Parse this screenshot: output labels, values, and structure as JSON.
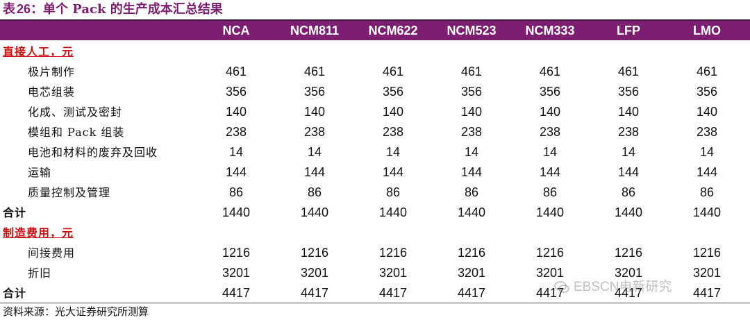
{
  "title": {
    "prefix": "表",
    "number": "26",
    "text": "单个 Pack 的生产成本汇总结果"
  },
  "columns": [
    "NCA",
    "NCM811",
    "NCM622",
    "NCM523",
    "NCM333",
    "LFP",
    "LMO"
  ],
  "rows": [
    {
      "type": "section",
      "label": "直接人工，元",
      "values": []
    },
    {
      "type": "item",
      "label": "极片制作",
      "values": [
        "461",
        "461",
        "461",
        "461",
        "461",
        "461",
        "461"
      ]
    },
    {
      "type": "item",
      "label": "电芯组装",
      "values": [
        "356",
        "356",
        "356",
        "356",
        "356",
        "356",
        "356"
      ]
    },
    {
      "type": "item",
      "label": "化成、测试及密封",
      "values": [
        "140",
        "140",
        "140",
        "140",
        "140",
        "140",
        "140"
      ]
    },
    {
      "type": "item",
      "label": "模组和 Pack 组装",
      "values": [
        "238",
        "238",
        "238",
        "238",
        "238",
        "238",
        "238"
      ]
    },
    {
      "type": "item",
      "label": "电池和材料的废弃及回收",
      "values": [
        "14",
        "14",
        "14",
        "14",
        "14",
        "14",
        "14"
      ]
    },
    {
      "type": "item",
      "label": "运输",
      "values": [
        "144",
        "144",
        "144",
        "144",
        "144",
        "144",
        "144"
      ]
    },
    {
      "type": "item",
      "label": "质量控制及管理",
      "values": [
        "86",
        "86",
        "86",
        "86",
        "86",
        "86",
        "86"
      ]
    },
    {
      "type": "total",
      "label": "合计",
      "values": [
        "1440",
        "1440",
        "1440",
        "1440",
        "1440",
        "1440",
        "1440"
      ]
    },
    {
      "type": "section",
      "label": "制造费用，元",
      "values": []
    },
    {
      "type": "item",
      "label": "间接费用",
      "values": [
        "1216",
        "1216",
        "1216",
        "1216",
        "1216",
        "1216",
        "1216"
      ]
    },
    {
      "type": "item",
      "label": "折旧",
      "values": [
        "3201",
        "3201",
        "3201",
        "3201",
        "3201",
        "3201",
        "3201"
      ]
    },
    {
      "type": "total",
      "label": "合计",
      "values": [
        "4417",
        "4417",
        "4417",
        "4417",
        "4417",
        "4417",
        "4417"
      ]
    }
  ],
  "source": "资料来源：光大证券研究所测算",
  "watermark": "EBSCN电新研究"
}
